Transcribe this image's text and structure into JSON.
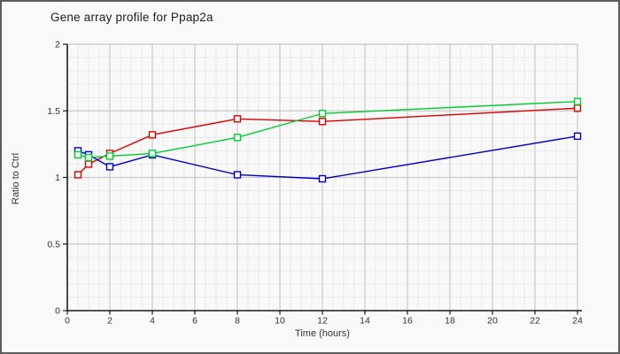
{
  "chart_data": {
    "type": "line",
    "title": "Gene array profile for Ppap2a",
    "xlabel": "Time (hours)",
    "ylabel": "Ratio to Ctrl",
    "x": [
      0.5,
      1,
      2,
      4,
      8,
      12,
      24
    ],
    "series": [
      {
        "name": "red",
        "color": "#dd0000",
        "values": [
          1.02,
          1.1,
          1.18,
          1.32,
          1.44,
          1.42,
          1.52
        ]
      },
      {
        "name": "blue",
        "color": "#0000cc",
        "values": [
          1.2,
          1.17,
          1.08,
          1.17,
          1.02,
          0.99,
          1.31
        ]
      },
      {
        "name": "green",
        "color": "#00cc33",
        "values": [
          1.17,
          1.15,
          1.16,
          1.18,
          1.3,
          1.48,
          1.57
        ]
      }
    ],
    "xlim": [
      0,
      24
    ],
    "ylim": [
      0,
      2
    ],
    "x_tick_labels": [
      "0",
      "2",
      "4",
      "6",
      "8",
      "10",
      "12",
      "14",
      "16",
      "18",
      "20",
      "22",
      "24"
    ],
    "y_tick_labels": [
      "0",
      "0.5",
      "1",
      "1.5",
      "2"
    ],
    "x_minor_step": 0.5,
    "y_minor_step": 0.1,
    "grid": true,
    "legend": false,
    "marker": "open-square",
    "style": {
      "background": "#f9f9f9",
      "minor_grid_color": "#eaeaea",
      "major_grid_color": "#c9c9c9",
      "axis_color": "#1a1a1a",
      "marker_fill": "#fdfdfd"
    }
  }
}
